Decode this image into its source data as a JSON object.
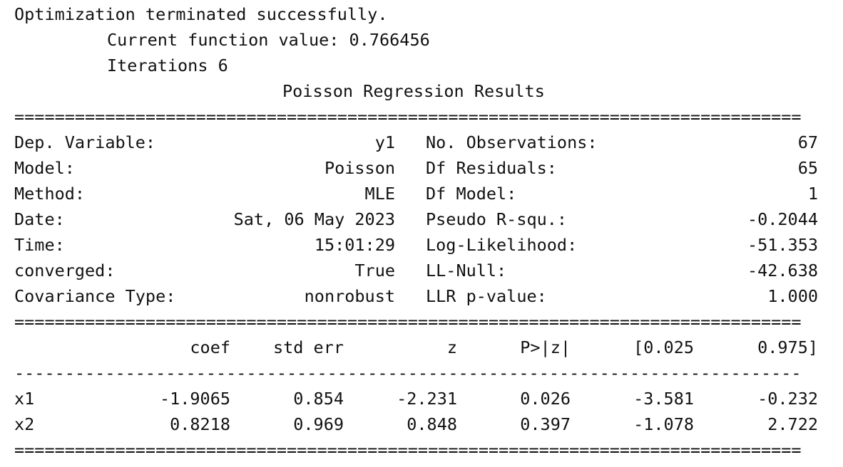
{
  "header": {
    "line1": "Optimization terminated successfully.",
    "line2": "Current function value: 0.766456",
    "line3": "Iterations 6",
    "title": "Poisson Regression Results"
  },
  "summary": {
    "left": [
      {
        "label": "Dep. Variable:",
        "value": "y1"
      },
      {
        "label": "Model:",
        "value": "Poisson"
      },
      {
        "label": "Method:",
        "value": "MLE"
      },
      {
        "label": "Date:",
        "value": "Sat, 06 May 2023"
      },
      {
        "label": "Time:",
        "value": "15:01:29"
      },
      {
        "label": "converged:",
        "value": "True"
      },
      {
        "label": "Covariance Type:",
        "value": "nonrobust"
      }
    ],
    "right": [
      {
        "label": "No. Observations:",
        "value": "67"
      },
      {
        "label": "Df Residuals:",
        "value": "65"
      },
      {
        "label": "Df Model:",
        "value": "1"
      },
      {
        "label": "Pseudo R-squ.:",
        "value": "-0.2044"
      },
      {
        "label": "Log-Likelihood:",
        "value": "-51.353"
      },
      {
        "label": "LL-Null:",
        "value": "-42.638"
      },
      {
        "label": "LLR p-value:",
        "value": "1.000"
      }
    ]
  },
  "coef_table": {
    "headers": [
      "coef",
      "std err",
      "z",
      "P>|z|",
      "[0.025",
      "0.975]"
    ],
    "rows": [
      {
        "name": "x1",
        "values": [
          "-1.9065",
          "0.854",
          "-2.231",
          "0.026",
          "-3.581",
          "-0.232"
        ]
      },
      {
        "name": "x2",
        "values": [
          "0.8218",
          "0.969",
          "0.848",
          "0.397",
          "-1.078",
          "2.722"
        ]
      }
    ]
  },
  "rules": {
    "double": "==============================================================================",
    "single": "------------------------------------------------------------------------------"
  }
}
